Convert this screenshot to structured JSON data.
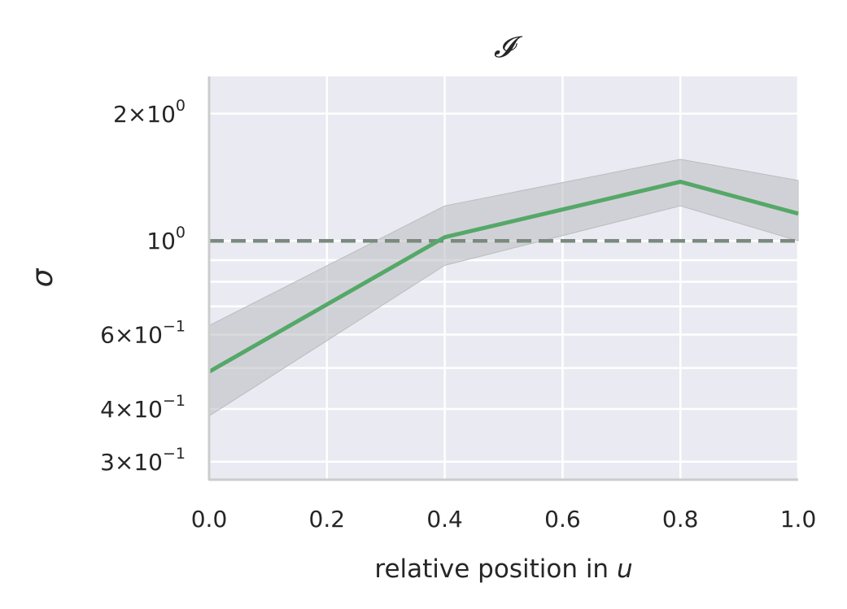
{
  "chart_data": {
    "type": "line",
    "title": "𝓘",
    "xlabel_prefix": "relative position in ",
    "xlabel_var": "u",
    "ylabel": "σ",
    "x": [
      0.0,
      0.4,
      0.8,
      1.0
    ],
    "series": [
      {
        "values": [
          0.49,
          1.02,
          1.38,
          1.16
        ],
        "lower": [
          0.385,
          0.875,
          1.21,
          1.0
        ],
        "upper": [
          0.63,
          1.21,
          1.56,
          1.39
        ],
        "color": "#55a868",
        "band_color": "#b9bcbf"
      }
    ],
    "reference_line": {
      "y": 1.0,
      "style": "dashed",
      "color": "#7a8a7c"
    },
    "xlim": [
      0.0,
      1.0
    ],
    "ylim": [
      0.272,
      2.45
    ],
    "yscale": "log",
    "x_ticks": [
      "0.0",
      "0.2",
      "0.4",
      "0.6",
      "0.8",
      "1.0"
    ],
    "y_ticks_labeled": [
      {
        "value": 2.0,
        "mantissa": "2",
        "exp": "0"
      },
      {
        "value": 1.0,
        "mantissa": "",
        "exp": "0"
      },
      {
        "value": 0.6,
        "mantissa": "6",
        "exp": "−1"
      },
      {
        "value": 0.4,
        "mantissa": "4",
        "exp": "−1"
      },
      {
        "value": 0.3,
        "mantissa": "3",
        "exp": "−1"
      }
    ],
    "y_minor_gridlines": [
      0.5,
      0.7,
      0.8,
      0.9
    ],
    "grid": true,
    "background": "#eaeaf2"
  }
}
